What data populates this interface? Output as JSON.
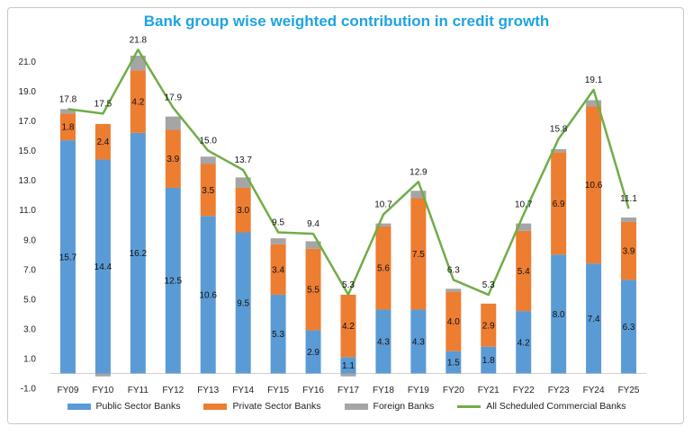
{
  "chart_data": {
    "type": "bar",
    "title": "Bank group wise weighted contribution in credit growth",
    "categories": [
      "FY09",
      "FY10",
      "FY11",
      "FY12",
      "FY13",
      "FY14",
      "FY15",
      "FY16",
      "FY17",
      "FY18",
      "FY19",
      "FY20",
      "FY21",
      "FY22",
      "FY23",
      "FY24",
      "FY25"
    ],
    "y_ticks": [
      "-1.0",
      "1.0",
      "3.0",
      "5.0",
      "7.0",
      "9.0",
      "11.0",
      "13.0",
      "15.0",
      "17.0",
      "19.0",
      "21.0"
    ],
    "ylim": [
      -1,
      22
    ],
    "grid": false,
    "legend_position": "bottom",
    "series": [
      {
        "name": "Public Sector Banks",
        "kind": "bar",
        "color": "#5b9bd5",
        "values": [
          15.7,
          14.4,
          16.2,
          12.5,
          10.6,
          9.5,
          5.3,
          2.9,
          1.1,
          4.3,
          4.3,
          1.5,
          1.8,
          4.2,
          8.0,
          7.4,
          6.3
        ],
        "labels": [
          "15.7",
          "14.4",
          "16.2",
          "12.5",
          "10.6",
          "9.5",
          "5.3",
          "2.9",
          "1.1",
          "4.3",
          "4.3",
          "1.5",
          "1.8",
          "4.2",
          "8.0",
          "7.4",
          "6.3"
        ]
      },
      {
        "name": "Private Sector Banks",
        "kind": "bar",
        "color": "#ed7d31",
        "values": [
          1.8,
          2.4,
          4.2,
          3.9,
          3.5,
          3.0,
          3.4,
          5.5,
          4.2,
          5.6,
          7.5,
          4.0,
          2.9,
          5.4,
          6.9,
          10.6,
          3.9
        ],
        "labels": [
          "1.8",
          "2.4",
          "4.2",
          "3.9",
          "3.5",
          "3.0",
          "3.4",
          "5.5",
          "4.2",
          "5.6",
          "7.5",
          "4.0",
          "2.9",
          "5.4",
          "6.9",
          "10.6",
          "3.9"
        ]
      },
      {
        "name": "Foreign Banks",
        "kind": "bar",
        "color": "#a5a5a5",
        "values": [
          0.3,
          -0.2,
          1.0,
          0.9,
          0.5,
          0.7,
          0.4,
          0.5,
          -0.2,
          0.2,
          0.5,
          0.2,
          0.0,
          0.5,
          0.2,
          0.4,
          0.3
        ]
      },
      {
        "name": "All Scheduled Commercial Banks",
        "kind": "line",
        "color": "#70ad47",
        "values": [
          17.8,
          17.5,
          21.8,
          17.9,
          15.0,
          13.7,
          9.5,
          9.4,
          5.3,
          10.7,
          12.9,
          6.3,
          5.3,
          10.7,
          15.8,
          19.1,
          11.1
        ],
        "labels": [
          "17.8",
          "17.5",
          "21.8",
          "17.9",
          "15.0",
          "13.7",
          "9.5",
          "9.4",
          "5.3",
          "10.7",
          "12.9",
          "6.3",
          "5.3",
          "10.7",
          "15.8",
          "19.1",
          "11.1"
        ]
      }
    ]
  }
}
